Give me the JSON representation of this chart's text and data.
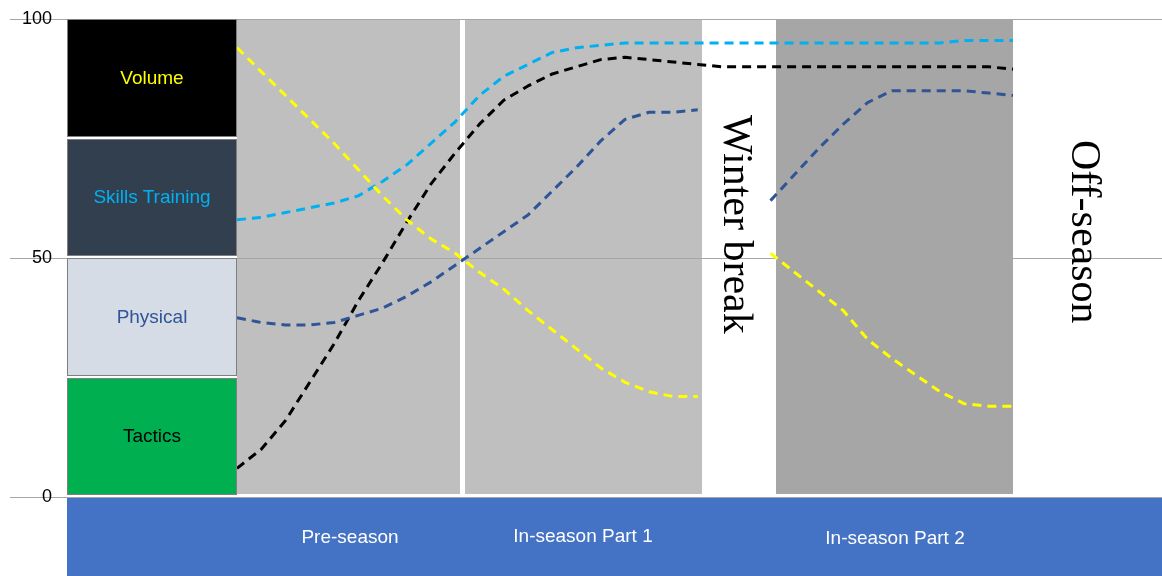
{
  "chart_data": {
    "type": "line",
    "categories": [
      null,
      null,
      null,
      null,
      null,
      null,
      null,
      null,
      null,
      null,
      null,
      null,
      null,
      null,
      null,
      null,
      null,
      null,
      null,
      null,
      null,
      null,
      null,
      null,
      null,
      null,
      null,
      null,
      null,
      null,
      null,
      null,
      null
    ],
    "ylim": [
      0,
      100
    ],
    "yticks": [
      0,
      50,
      100
    ],
    "grid": "y",
    "tick_labels": "y",
    "line_style": "dashed",
    "annotations": [
      "Pre-season",
      "In-season Part 1",
      "Winter break",
      "In-season Part 2",
      "Off-season"
    ],
    "series": [
      {
        "name": "Volume",
        "color": "#ffff00",
        "values": [
          94,
          89,
          84,
          79,
          74,
          68.5,
          63,
          58,
          54,
          51,
          47,
          43.5,
          39,
          35,
          31,
          27,
          24,
          22,
          21,
          21,
          null,
          null,
          51,
          47,
          43,
          39,
          33,
          29,
          25.5,
          22,
          19.5,
          19,
          19
        ]
      },
      {
        "name": "Skills Training",
        "color": "#00b0f0",
        "values": [
          58,
          58.5,
          59.5,
          60.5,
          61.5,
          63,
          66,
          69.5,
          74,
          78.5,
          84,
          88,
          90.5,
          93,
          94,
          94.5,
          95,
          95,
          95,
          95,
          95,
          95,
          95,
          95,
          95,
          95,
          95,
          95,
          95,
          95,
          95.5,
          95.5,
          95.5
        ]
      },
      {
        "name": "Physical",
        "color": "#2f5597",
        "values": [
          37.5,
          36.5,
          36,
          36,
          36.5,
          38,
          39.5,
          42,
          45,
          48.5,
          52,
          55.5,
          59,
          64,
          69,
          74.5,
          79,
          80.5,
          80.5,
          81,
          null,
          null,
          62,
          67.5,
          73,
          78,
          82.5,
          85,
          85,
          85,
          85,
          84.5,
          84
        ]
      },
      {
        "name": "Tactics",
        "color": "#000000",
        "values": [
          6,
          10,
          16,
          24,
          32,
          41,
          49,
          57.5,
          65.5,
          72,
          78,
          83,
          86,
          88.5,
          90,
          91.5,
          92,
          91.5,
          91,
          90.5,
          90,
          90,
          90,
          90,
          90,
          90,
          90,
          90,
          90,
          90,
          90,
          90,
          89.5
        ]
      }
    ]
  }
}
